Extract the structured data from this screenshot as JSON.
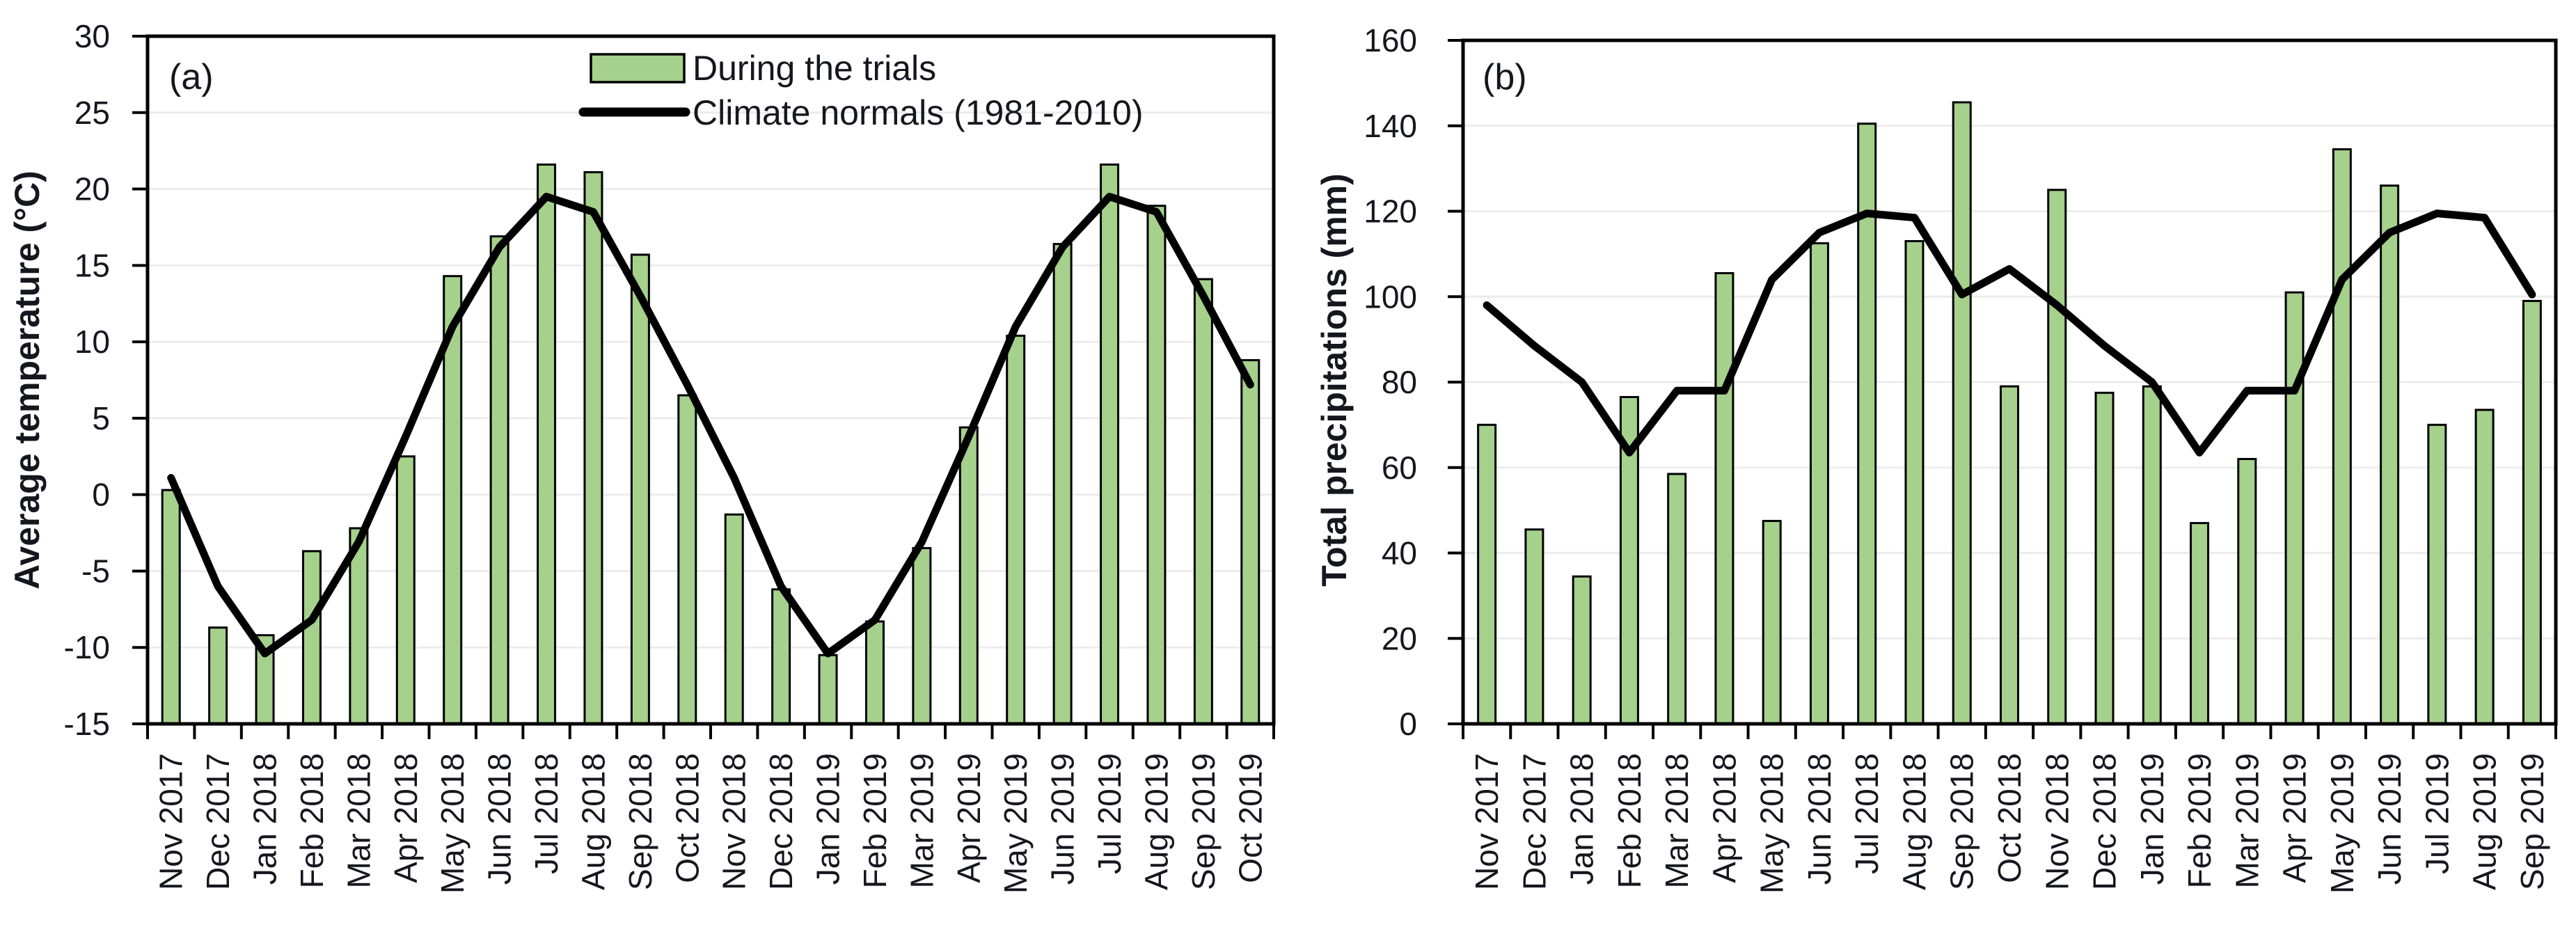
{
  "figure": {
    "background": "#ffffff",
    "text_color": "#16161f",
    "bar_fill": "#a5d18c",
    "bar_stroke": "#000000",
    "line_color": "#000000",
    "grid_color": "#ececec",
    "spine_color": "#000000"
  },
  "legend": {
    "position": "top-center-panel-a",
    "entries": [
      {
        "type": "bar-swatch",
        "label": "During the trials"
      },
      {
        "type": "line-swatch",
        "label": "Climate normals (1981-2010)"
      }
    ]
  },
  "chart_data": [
    {
      "type": "bar",
      "panel_label": "(a)",
      "title": "",
      "xlabel": "",
      "ylabel": "Average temperature (°C)",
      "ylim": [
        -15,
        30
      ],
      "ytick_step": 5,
      "yticks": [
        -15,
        -10,
        -5,
        0,
        5,
        10,
        15,
        20,
        25,
        30
      ],
      "grid": "horizontal",
      "legend_position": "top-center-inside",
      "categories": [
        "Nov 2017",
        "Dec 2017",
        "Jan 2018",
        "Feb 2018",
        "Mar 2018",
        "Apr 2018",
        "May 2018",
        "Jun 2018",
        "Jul 2018",
        "Aug 2018",
        "Sep 2018",
        "Oct 2018",
        "Nov 2018",
        "Dec 2018",
        "Jan 2019",
        "Feb 2019",
        "Mar 2019",
        "Apr 2019",
        "May 2019",
        "Jun 2019",
        "Jul 2019",
        "Aug 2019",
        "Sep 2019",
        "Oct 2019"
      ],
      "series": [
        {
          "name": "During the trials",
          "kind": "bar",
          "values": [
            0.3,
            -8.7,
            -9.2,
            -3.7,
            -2.2,
            2.5,
            14.3,
            16.9,
            21.6,
            21.1,
            15.7,
            6.5,
            -1.3,
            -6.2,
            -10.5,
            -8.3,
            -3.5,
            4.4,
            10.4,
            16.4,
            21.6,
            18.9,
            14.1,
            8.8
          ]
        },
        {
          "name": "Climate normals (1981-2010)",
          "kind": "line",
          "values": [
            1.1,
            -6.0,
            -10.4,
            -8.2,
            -3.1,
            3.8,
            11.0,
            16.2,
            19.5,
            18.5,
            13.0,
            7.2,
            1.1,
            -6.0,
            -10.4,
            -8.2,
            -3.1,
            3.8,
            11.0,
            16.2,
            19.5,
            18.5,
            13.0,
            7.2
          ]
        }
      ]
    },
    {
      "type": "bar",
      "panel_label": "(b)",
      "title": "",
      "xlabel": "",
      "ylabel": "Total precipitations (mm)",
      "ylim": [
        0,
        160
      ],
      "ytick_step": 20,
      "yticks": [
        0,
        20,
        40,
        60,
        80,
        100,
        120,
        140,
        160
      ],
      "grid": "horizontal",
      "legend_position": "none",
      "categories": [
        "Nov 2017",
        "Dec 2017",
        "Jan 2018",
        "Feb 2018",
        "Mar 2018",
        "Apr 2018",
        "May 2018",
        "Jun 2018",
        "Jul 2018",
        "Aug 2018",
        "Sep 2018",
        "Oct 2018",
        "Nov 2018",
        "Dec 2018",
        "Jan 2019",
        "Feb 2019",
        "Mar 2019",
        "Apr 2019",
        "May 2019",
        "Jun 2019",
        "Jul 2019",
        "Aug 2019",
        "Sep 2019"
      ],
      "series": [
        {
          "name": "During the trials",
          "kind": "bar",
          "values": [
            70,
            45.5,
            34.5,
            76.5,
            58.5,
            105.5,
            47.5,
            112.5,
            140.5,
            113,
            145.5,
            79,
            125,
            77.5,
            79,
            47,
            62,
            101,
            134.5,
            126,
            70,
            73.5,
            99
          ]
        },
        {
          "name": "Climate normals (1981-2010)",
          "kind": "line",
          "values": [
            98,
            88.5,
            80,
            63.5,
            78,
            78,
            104,
            115,
            119.5,
            118.5,
            100.5,
            106.5,
            98,
            88.5,
            80,
            63.5,
            78,
            78,
            104,
            115,
            119.5,
            118.5,
            100.5
          ]
        }
      ]
    }
  ]
}
